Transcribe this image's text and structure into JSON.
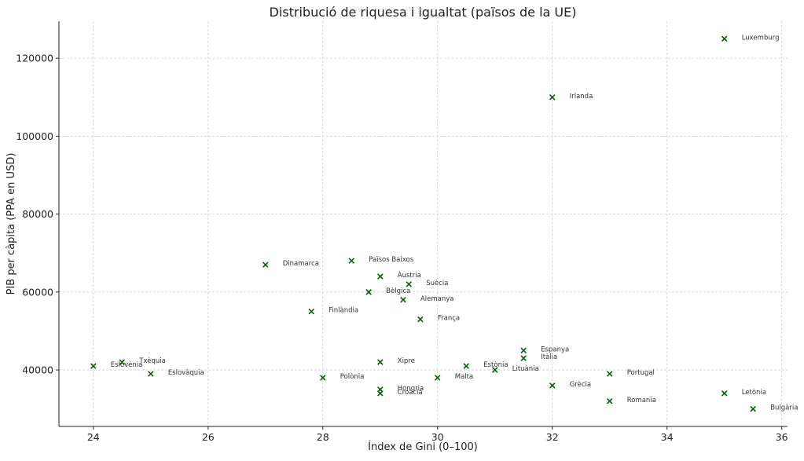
{
  "chart_data": {
    "type": "scatter",
    "title": "Distribució de riquesa i igualtat (països de la UE)",
    "xlabel": "Índex de Gini (0–100)",
    "ylabel": "PIB per càpita (PPA en USD)",
    "xlim": [
      23.4,
      36.1
    ],
    "ylim": [
      25500,
      129500
    ],
    "xticks": [
      24,
      26,
      28,
      30,
      32,
      34,
      36
    ],
    "yticks": [
      40000,
      60000,
      80000,
      100000,
      120000
    ],
    "grid": true,
    "marker": "x",
    "color": "#006400",
    "points": [
      {
        "label": "Luxemburg",
        "x": 35.0,
        "y": 125000
      },
      {
        "label": "Irlanda",
        "x": 32.0,
        "y": 110000
      },
      {
        "label": "Dinamarca",
        "x": 27.0,
        "y": 67000
      },
      {
        "label": "Països Baixos",
        "x": 28.5,
        "y": 68000
      },
      {
        "label": "Àustria",
        "x": 29.0,
        "y": 64000
      },
      {
        "label": "Suècia",
        "x": 29.5,
        "y": 62000
      },
      {
        "label": "Bèlgica",
        "x": 28.8,
        "y": 60000
      },
      {
        "label": "Alemanya",
        "x": 29.4,
        "y": 58000
      },
      {
        "label": "Finlàndia",
        "x": 27.8,
        "y": 55000
      },
      {
        "label": "França",
        "x": 29.7,
        "y": 53000
      },
      {
        "label": "Espanya",
        "x": 31.5,
        "y": 45000
      },
      {
        "label": "Itàlia",
        "x": 31.5,
        "y": 43000
      },
      {
        "label": "Eslovènia",
        "x": 24.0,
        "y": 41000
      },
      {
        "label": "Txèquia",
        "x": 24.5,
        "y": 42000
      },
      {
        "label": "Eslovàquia",
        "x": 25.0,
        "y": 39000
      },
      {
        "label": "Xipre",
        "x": 29.0,
        "y": 42000
      },
      {
        "label": "Estònia",
        "x": 30.5,
        "y": 41000
      },
      {
        "label": "Lituània",
        "x": 31.0,
        "y": 40000
      },
      {
        "label": "Portugal",
        "x": 33.0,
        "y": 39000
      },
      {
        "label": "Polònia",
        "x": 28.0,
        "y": 38000
      },
      {
        "label": "Malta",
        "x": 30.0,
        "y": 38000
      },
      {
        "label": "Grècia",
        "x": 32.0,
        "y": 36000
      },
      {
        "label": "Hongria",
        "x": 29.0,
        "y": 35000
      },
      {
        "label": "Croàcia",
        "x": 29.0,
        "y": 34000
      },
      {
        "label": "Letònia",
        "x": 35.0,
        "y": 34000
      },
      {
        "label": "Romania",
        "x": 33.0,
        "y": 32000
      },
      {
        "label": "Bulgària",
        "x": 35.5,
        "y": 30000
      }
    ]
  }
}
